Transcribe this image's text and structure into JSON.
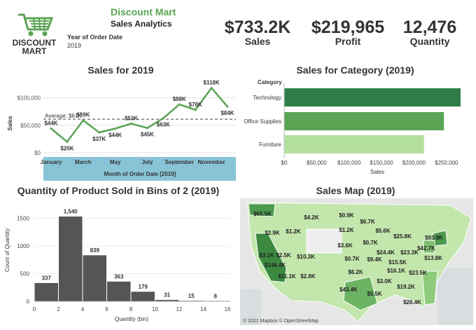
{
  "header": {
    "brand_line1": "DISCOUNT",
    "brand_line2": "MART",
    "title": "Discount Mart",
    "subtitle": "Sales Analytics",
    "filter_label": "Year of Order Date",
    "filter_value": "2019",
    "brand_color": "#5aa454"
  },
  "kpis": [
    {
      "value": "$733.2K",
      "label": "Sales"
    },
    {
      "value": "$219,965",
      "label": "Profit"
    },
    {
      "value": "12,476",
      "label": "Quantity"
    }
  ],
  "sales_trend": {
    "title": "Sales for  2019",
    "xlabel": "Month of Order Date [2019]",
    "ylabel": "Sales",
    "average_label": "Average: $61K",
    "y_ticks": [
      "$100,000",
      "$50,000",
      "$0"
    ],
    "month_ticks": [
      "January",
      "March",
      "May",
      "July",
      "September",
      "November"
    ],
    "line_color": "#5aa454",
    "axis_band_color": "#89c4d6"
  },
  "category_chart": {
    "title": "Sales for Category (2019)",
    "header": "Category",
    "xlabel": "Sales",
    "x_ticks": [
      "$0",
      "$50,000",
      "$100,000",
      "$150,000",
      "$200,000",
      "$250,000"
    ]
  },
  "histogram": {
    "title": "Quantity of Product Sold in Bins of 2 (2019)",
    "xlabel": "Quantity (bin)",
    "ylabel": "Count of Quantity",
    "y_ticks": [
      "1500",
      "1000",
      "500",
      "0"
    ],
    "x_ticks": [
      "0",
      "2",
      "4",
      "6",
      "8",
      "10",
      "12",
      "14",
      "16"
    ],
    "bar_color": "#555555"
  },
  "map": {
    "title": "Sales Map (2019)",
    "attribution": "© 2021 Mapbox © OpenStreetMap",
    "labels": [
      "$65.5K",
      "$4.2K",
      "$0.9K",
      "$6.7K",
      "$2.9K",
      "$1.2K",
      "$1.2K",
      "$5.6K",
      "$25.8K",
      "$93.9K",
      "$3.6K",
      "$0.7K",
      "$23.3K",
      "$42.7K",
      "$3.1K",
      "$2.5K",
      "$10.3K",
      "$24.4K",
      "$146.4K",
      "$0.7K",
      "$9.4K",
      "$15.5K",
      "$13.8K",
      "$6.2K",
      "$16.1K",
      "$23.5K",
      "$11.1K",
      "$2.8K",
      "$3.0K",
      "$43.4K",
      "$19.2K",
      "$5.5K",
      "$26.4K"
    ]
  },
  "chart_data": [
    {
      "type": "line",
      "title": "Sales for  2019",
      "xlabel": "Month of Order Date [2019]",
      "ylabel": "Sales",
      "x": [
        "January",
        "February",
        "March",
        "April",
        "May",
        "June",
        "July",
        "August",
        "September",
        "October",
        "November",
        "December"
      ],
      "series": [
        {
          "values": [
            44000,
            20000,
            59000,
            37000,
            44000,
            53000,
            45000,
            63000,
            88000,
            78000,
            118000,
            84000
          ]
        }
      ],
      "data_labels": [
        "$44K",
        "$20K",
        "$59K",
        "$37K",
        "$44K",
        "$53K",
        "$45K",
        "$63K",
        "$88K",
        "$78K",
        "$118K",
        "$84K"
      ],
      "reference_line": {
        "label": "Average: $61K",
        "value": 61000
      },
      "ylim": [
        0,
        125000
      ],
      "grid": true
    },
    {
      "type": "bar",
      "orientation": "horizontal",
      "title": "Sales for Category (2019)",
      "xlabel": "Sales",
      "categories": [
        "Technology",
        "Office Supplies",
        "Furniture"
      ],
      "values": [
        271731,
        246097,
        215387
      ],
      "colors": [
        "#2e7d46",
        "#5aa454",
        "#b2e09c"
      ],
      "xlim": [
        0,
        275000
      ]
    },
    {
      "type": "bar",
      "title": "Quantity of Product Sold in Bins of 2 (2019)",
      "xlabel": "Quantity (bin)",
      "ylabel": "Count of Quantity",
      "categories": [
        "0",
        "2",
        "4",
        "6",
        "8",
        "10",
        "12",
        "14"
      ],
      "values": [
        337,
        1540,
        839,
        363,
        179,
        31,
        15,
        8
      ],
      "data_labels": [
        "337",
        "1,540",
        "839",
        "363",
        "179",
        "31",
        "15",
        "8"
      ],
      "ylim": [
        0,
        1750
      ],
      "xlim": [
        0,
        16
      ]
    }
  ]
}
